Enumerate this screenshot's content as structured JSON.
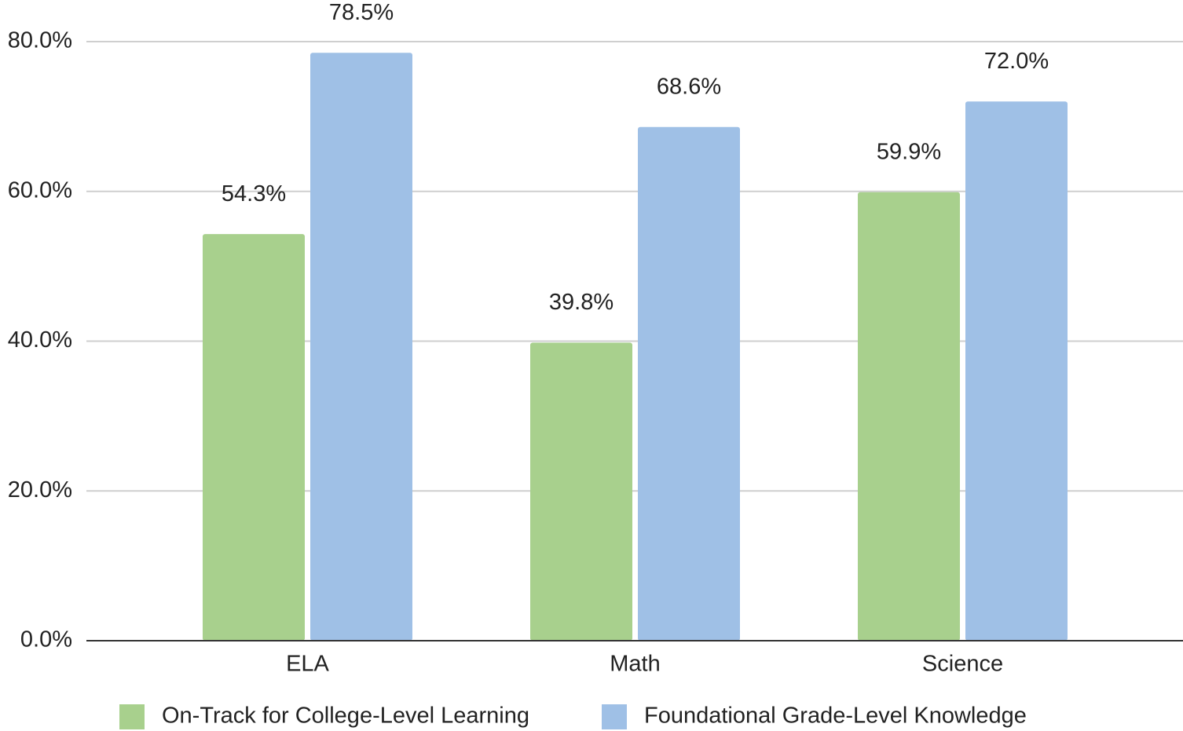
{
  "chart_data": {
    "type": "bar",
    "categories": [
      "ELA",
      "Math",
      "Science"
    ],
    "series": [
      {
        "name": "On-Track for College-Level Learning",
        "color": "#a8d08d",
        "values": [
          54.3,
          39.8,
          59.9
        ],
        "value_labels": [
          "54.3%",
          "39.8%",
          "59.9%"
        ]
      },
      {
        "name": "Foundational Grade-Level Knowledge",
        "color": "#9fc0e6",
        "values": [
          78.5,
          68.6,
          72.0
        ],
        "value_labels": [
          "78.5%",
          "68.6%",
          "72.0%"
        ]
      }
    ],
    "ylim": [
      0,
      80
    ],
    "yticks": [
      {
        "value": 0,
        "label": "0.0%"
      },
      {
        "value": 20,
        "label": "20.0%"
      },
      {
        "value": 40,
        "label": "40.0%"
      },
      {
        "value": 60,
        "label": "60.0%"
      },
      {
        "value": 80,
        "label": "80.0%"
      }
    ],
    "grid": true,
    "legend": "bottom"
  }
}
